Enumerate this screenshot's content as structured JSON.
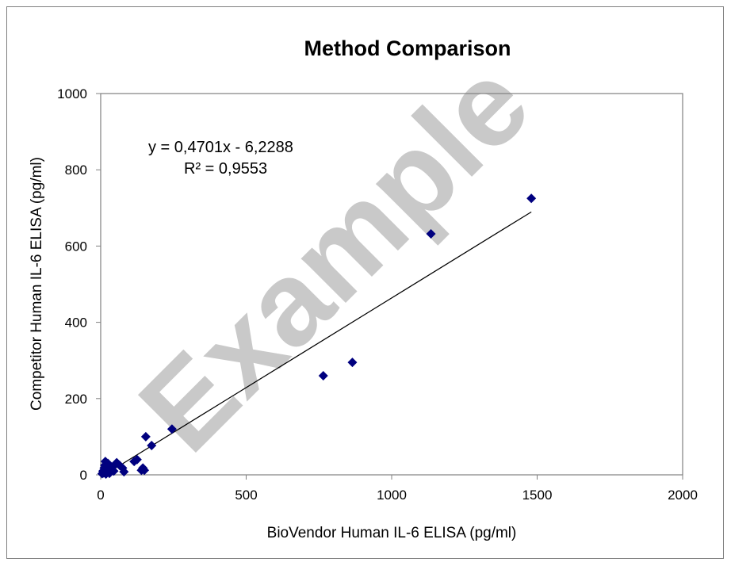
{
  "chart_data": {
    "type": "scatter",
    "title": "Method Comparison",
    "xlabel": "BioVendor Human IL-6 ELISA (pg/ml)",
    "ylabel": "Competitor Human  IL-6 ELISA (pg/ml)",
    "xlim": [
      0,
      2000
    ],
    "ylim": [
      0,
      1000
    ],
    "xticks": [
      0,
      500,
      1000,
      1500,
      2000
    ],
    "yticks": [
      0,
      200,
      400,
      600,
      800,
      1000
    ],
    "grid": false,
    "legend": "none",
    "marker_color": "#00007f",
    "trendline": {
      "slope": 0.4701,
      "intercept": -6.2288,
      "x_range": [
        0,
        1480
      ],
      "equation": "y = 0,4701x - 6,2288",
      "r2": "R² = 0,9553"
    },
    "points": [
      {
        "x": 5,
        "y": 3
      },
      {
        "x": 8,
        "y": 10
      },
      {
        "x": 10,
        "y": 5
      },
      {
        "x": 12,
        "y": 18
      },
      {
        "x": 14,
        "y": 25
      },
      {
        "x": 16,
        "y": 35
      },
      {
        "x": 18,
        "y": 2
      },
      {
        "x": 22,
        "y": 8
      },
      {
        "x": 25,
        "y": 30
      },
      {
        "x": 28,
        "y": 15
      },
      {
        "x": 30,
        "y": 4
      },
      {
        "x": 35,
        "y": 12
      },
      {
        "x": 40,
        "y": 20
      },
      {
        "x": 45,
        "y": 10
      },
      {
        "x": 55,
        "y": 32
      },
      {
        "x": 65,
        "y": 25
      },
      {
        "x": 75,
        "y": 18
      },
      {
        "x": 80,
        "y": 8
      },
      {
        "x": 115,
        "y": 35
      },
      {
        "x": 125,
        "y": 40
      },
      {
        "x": 140,
        "y": 12
      },
      {
        "x": 145,
        "y": 18
      },
      {
        "x": 150,
        "y": 12
      },
      {
        "x": 155,
        "y": 100
      },
      {
        "x": 175,
        "y": 77
      },
      {
        "x": 245,
        "y": 120
      },
      {
        "x": 765,
        "y": 260
      },
      {
        "x": 865,
        "y": 295
      },
      {
        "x": 1135,
        "y": 632
      },
      {
        "x": 1480,
        "y": 725
      }
    ]
  },
  "watermark": "Example"
}
